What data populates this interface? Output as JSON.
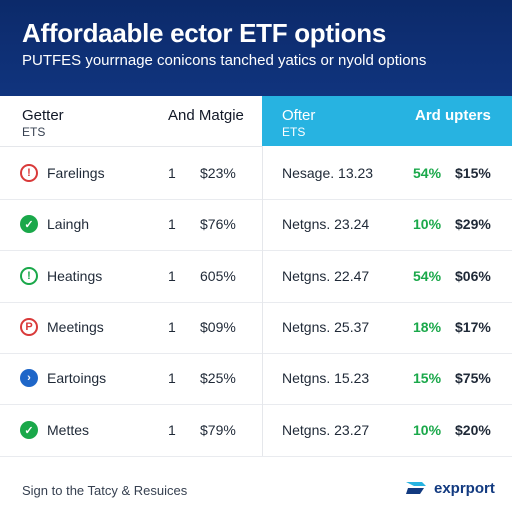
{
  "header": {
    "title": "Affordaable ector ETF options",
    "subtitle": "PUTFES yourrnage conicons tanched yatics or nyold options"
  },
  "columns": {
    "left_title": "Getter",
    "left_sub": "ETS",
    "mid_title": "And Matgie",
    "right_title": "Ofter",
    "right_sub": "ETS",
    "far_right_title": "Ard upters"
  },
  "rows": [
    {
      "icon": "info-red-icon",
      "style": "red",
      "glyph": "!",
      "name": "Farelings",
      "qty": "1",
      "pct": "$23%",
      "detail": "Nesage. 13.23",
      "change": "54%",
      "value": "$15%"
    },
    {
      "icon": "check-green-icon",
      "style": "green",
      "glyph": "✓",
      "name": "Laingh",
      "qty": "1",
      "pct": "$76%",
      "detail": "Netgns. 23.24",
      "change": "10%",
      "value": "$29%"
    },
    {
      "icon": "exclamation-green-icon",
      "style": "green-outline",
      "glyph": "!",
      "name": "Heatings",
      "qty": "1",
      "pct": "605%",
      "detail": "Netgns. 22.47",
      "change": "54%",
      "value": "$06%"
    },
    {
      "icon": "p-red-icon",
      "style": "red",
      "glyph": "P",
      "name": "Meetings",
      "qty": "1",
      "pct": "$09%",
      "detail": "Netgns. 25.37",
      "change": "18%",
      "value": "$17%"
    },
    {
      "icon": "arrow-blue-icon",
      "style": "blue",
      "glyph": "›",
      "name": "Eartoings",
      "qty": "1",
      "pct": "$25%",
      "detail": "Netgns. 15.23",
      "change": "15%",
      "value": "$75%"
    },
    {
      "icon": "check-green-icon",
      "style": "green",
      "glyph": "✓",
      "name": "Mettes",
      "qty": "1",
      "pct": "$79%",
      "detail": "Netgns. 23.27",
      "change": "10%",
      "value": "$20%"
    }
  ],
  "footer": {
    "text": "Sign to the Tatcy & Resuices",
    "brand": "exprport"
  },
  "colors": {
    "header_bg": "#0c2a6a",
    "accent": "#27b3e1",
    "positive": "#1aa84a",
    "negative": "#d93a3a",
    "brand": "#123a80"
  }
}
